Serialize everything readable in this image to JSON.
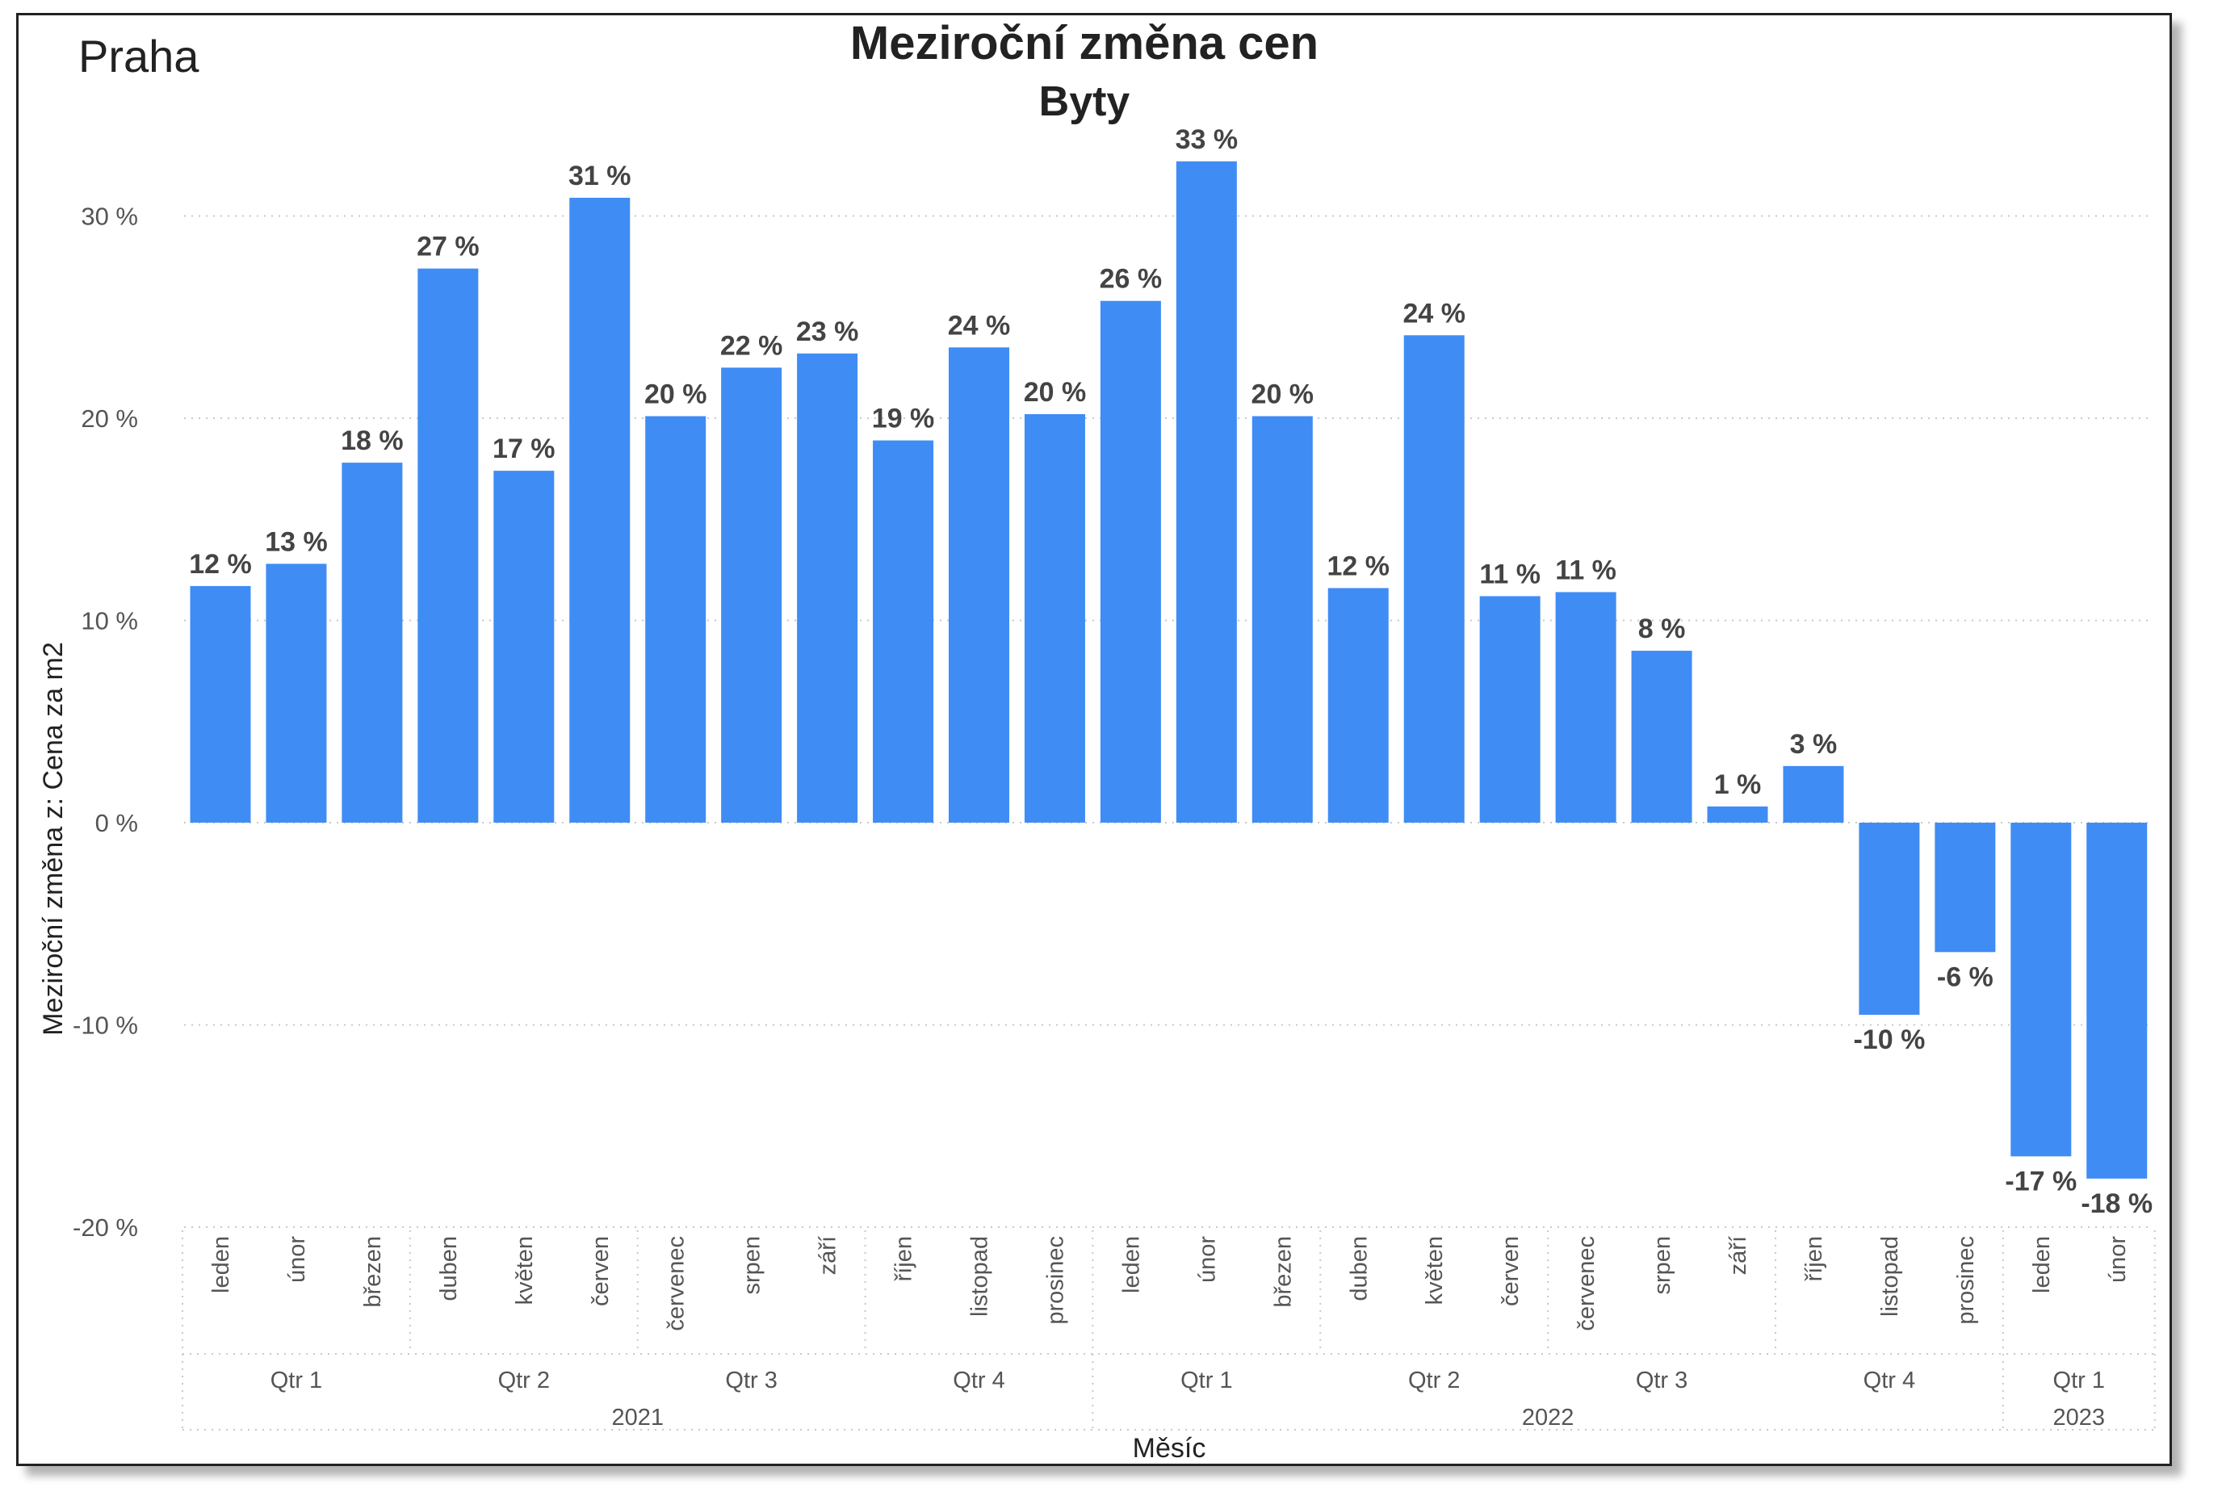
{
  "chart_data": {
    "type": "bar",
    "region": "Praha",
    "title": "Meziroční změna cen",
    "subtitle": "Byty",
    "ylabel": "Meziroční změna z: Cena za m2",
    "xlabel": "Měsíc",
    "ylim": [
      -20,
      33
    ],
    "yticks": [
      {
        "value": 30,
        "label": "30 %"
      },
      {
        "value": 20,
        "label": "20 %"
      },
      {
        "value": 10,
        "label": "10 %"
      },
      {
        "value": 0,
        "label": "0 %"
      },
      {
        "value": -10,
        "label": "-10 %"
      },
      {
        "value": -20,
        "label": "-20 %"
      }
    ],
    "grid": true,
    "bar_color": "#3F8CF5",
    "categories": [
      "leden",
      "únor",
      "březen",
      "duben",
      "květen",
      "červen",
      "červenec",
      "srpen",
      "září",
      "říjen",
      "listopad",
      "prosinec",
      "leden",
      "únor",
      "březen",
      "duben",
      "květen",
      "červen",
      "červenec",
      "srpen",
      "září",
      "říjen",
      "listopad",
      "prosinec",
      "leden",
      "únor"
    ],
    "values": [
      11.7,
      12.8,
      17.8,
      27.4,
      17.4,
      30.9,
      20.1,
      22.5,
      23.2,
      18.9,
      23.5,
      20.2,
      25.8,
      32.7,
      20.1,
      11.6,
      24.1,
      11.2,
      11.4,
      8.5,
      0.8,
      2.8,
      -9.5,
      -6.4,
      -16.5,
      -17.6
    ],
    "value_labels": [
      "12 %",
      "13 %",
      "18 %",
      "27 %",
      "17 %",
      "31 %",
      "20 %",
      "22 %",
      "23 %",
      "19 %",
      "24 %",
      "20 %",
      "26 %",
      "33 %",
      "20 %",
      "12 %",
      "24 %",
      "11 %",
      "11 %",
      "8 %",
      "1 %",
      "3 %",
      "-10 %",
      "-6 %",
      "-17 %",
      "-18 %"
    ],
    "quarters": [
      {
        "label": "Qtr 1",
        "months": 3
      },
      {
        "label": "Qtr 2",
        "months": 3
      },
      {
        "label": "Qtr 3",
        "months": 3
      },
      {
        "label": "Qtr 4",
        "months": 3
      },
      {
        "label": "Qtr 1",
        "months": 3
      },
      {
        "label": "Qtr 2",
        "months": 3
      },
      {
        "label": "Qtr 3",
        "months": 3
      },
      {
        "label": "Qtr 4",
        "months": 3
      },
      {
        "label": "Qtr 1",
        "months": 2
      }
    ],
    "years": [
      {
        "label": "2021",
        "months": 12
      },
      {
        "label": "2022",
        "months": 12
      },
      {
        "label": "2023",
        "months": 2
      }
    ]
  }
}
